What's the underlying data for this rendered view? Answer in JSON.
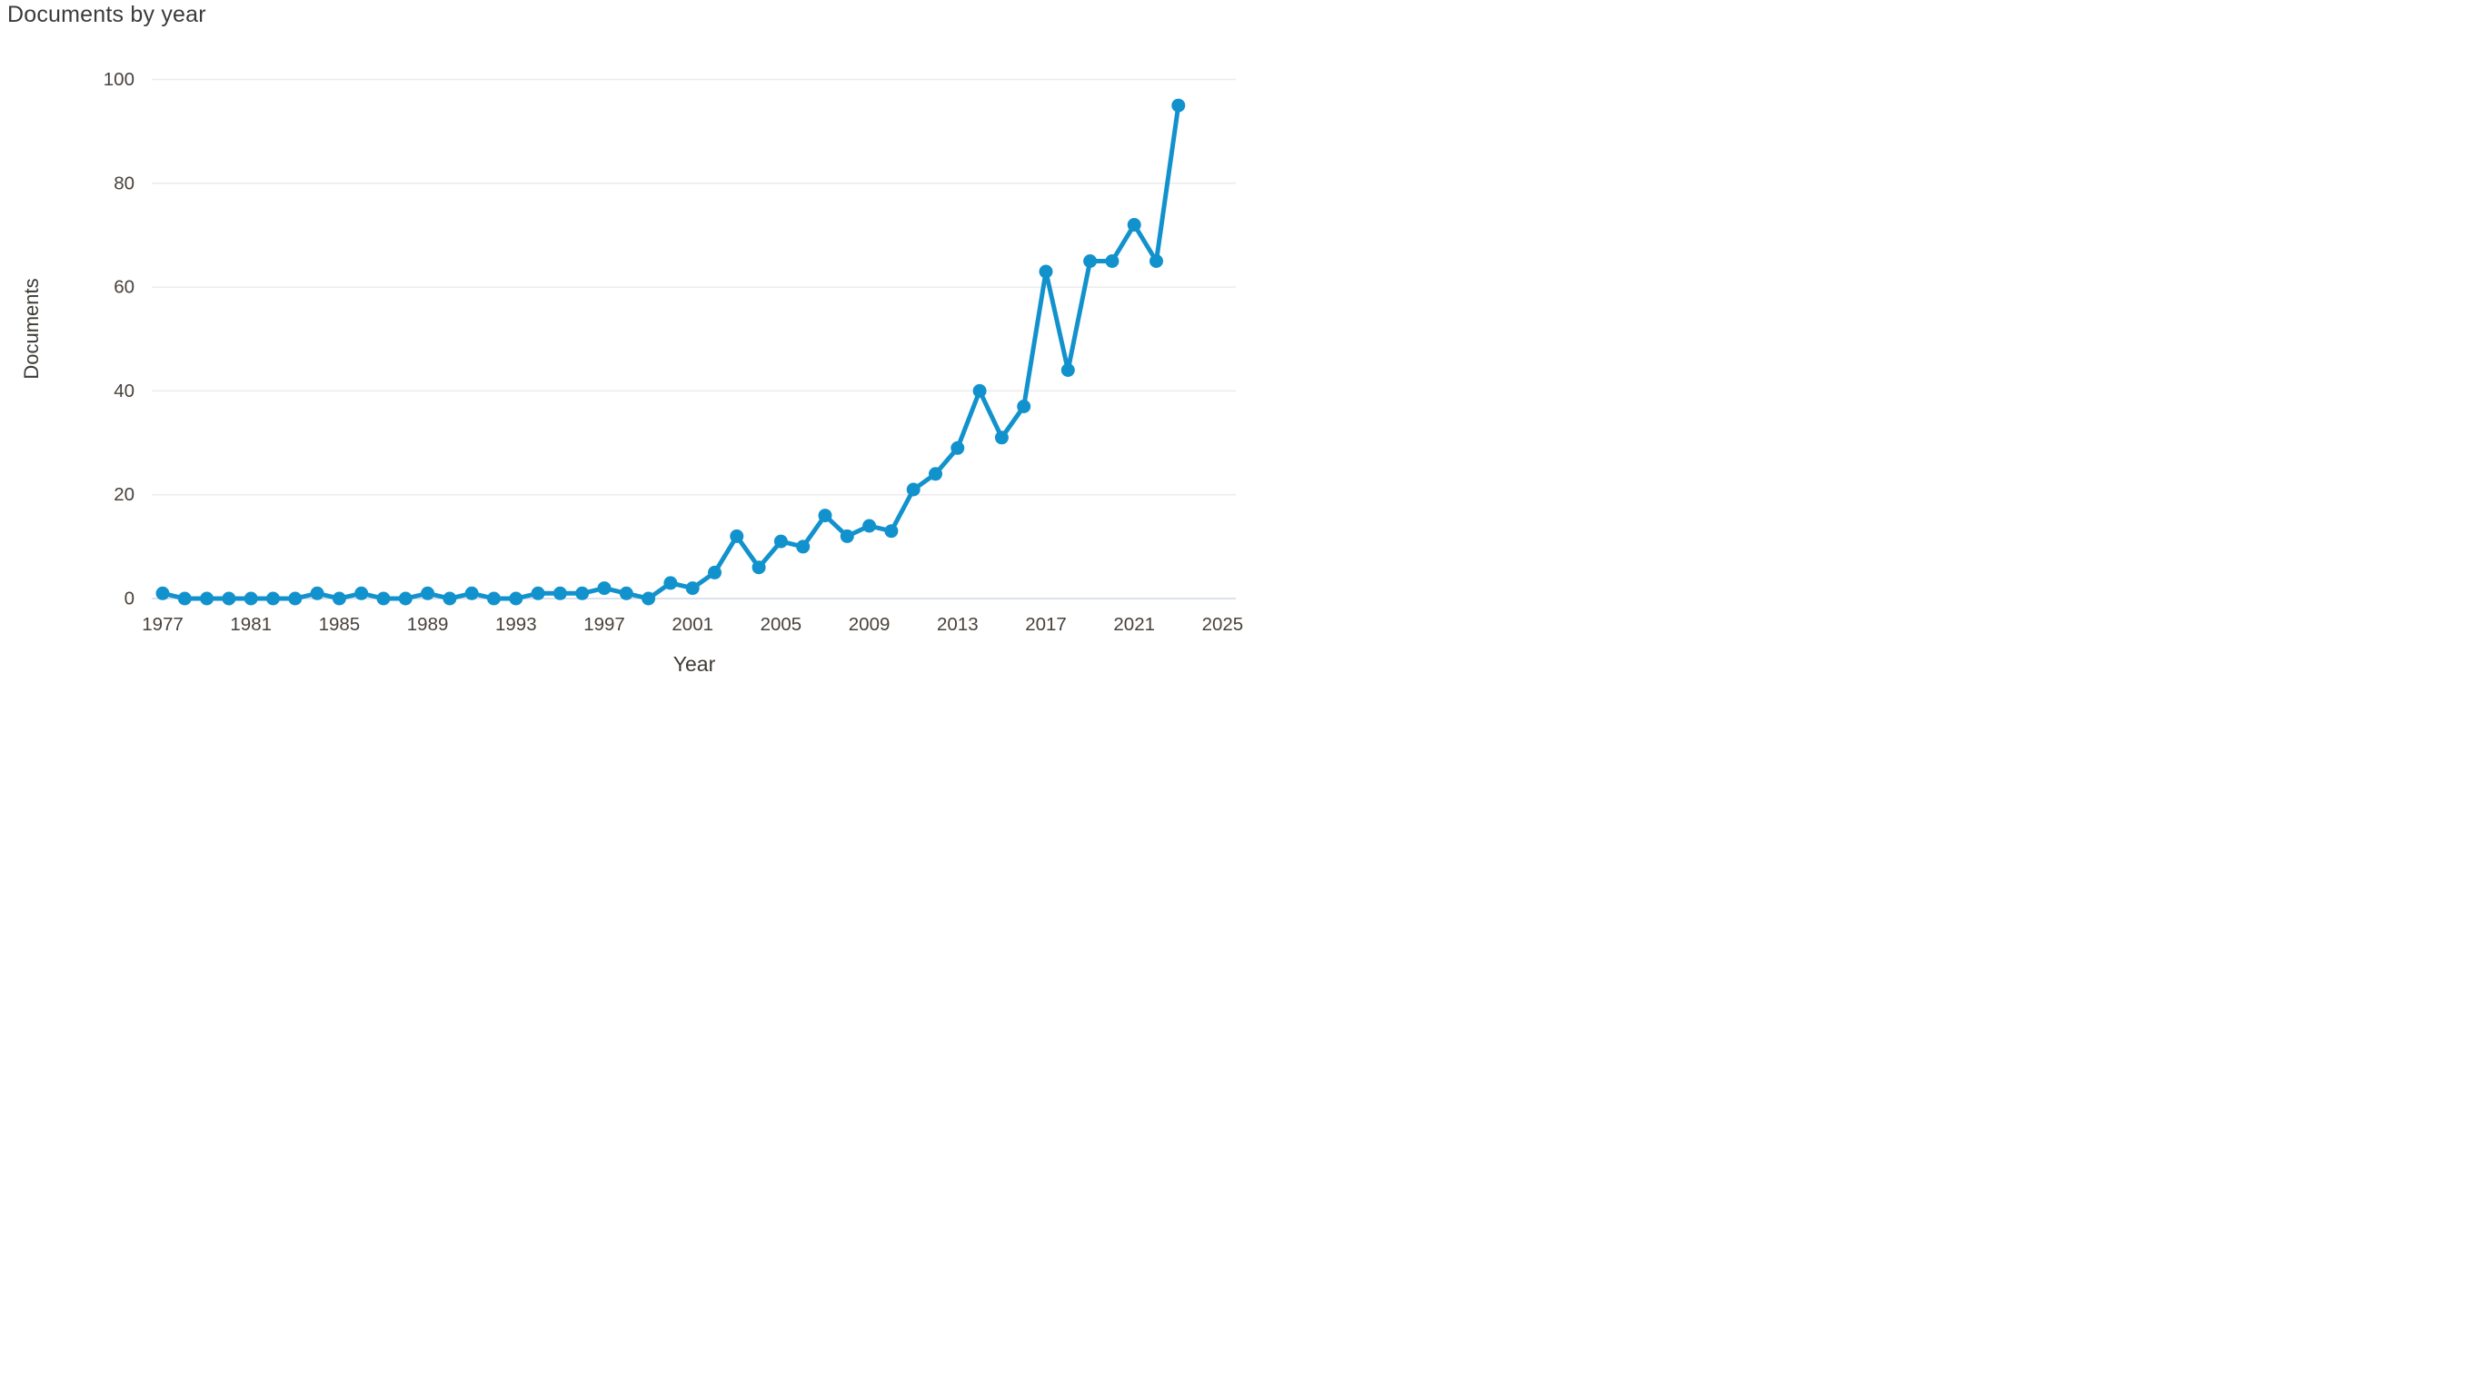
{
  "chart_data": {
    "type": "line",
    "title": "Documents by year",
    "xlabel": "Year",
    "ylabel": "Documents",
    "series_name": "Documents",
    "x": [
      1977,
      1978,
      1979,
      1980,
      1981,
      1982,
      1983,
      1984,
      1985,
      1986,
      1987,
      1988,
      1989,
      1990,
      1991,
      1992,
      1993,
      1994,
      1995,
      1996,
      1997,
      1998,
      1999,
      2000,
      2001,
      2002,
      2003,
      2004,
      2005,
      2006,
      2007,
      2008,
      2009,
      2010,
      2011,
      2012,
      2013,
      2014,
      2015,
      2016,
      2017,
      2018,
      2019,
      2020,
      2021,
      2022,
      2023
    ],
    "values": [
      1,
      0,
      0,
      0,
      0,
      0,
      0,
      1,
      0,
      1,
      0,
      0,
      1,
      0,
      1,
      0,
      0,
      1,
      1,
      1,
      2,
      1,
      0,
      3,
      2,
      5,
      12,
      6,
      11,
      10,
      16,
      12,
      14,
      13,
      21,
      24,
      29,
      40,
      31,
      37,
      63,
      44,
      65,
      65,
      72,
      65,
      95
    ],
    "ylim": [
      0,
      100
    ],
    "yticks": [
      0,
      20,
      40,
      60,
      80,
      100
    ],
    "xticks": [
      1977,
      1981,
      1985,
      1989,
      1993,
      1997,
      2001,
      2005,
      2009,
      2013,
      2017,
      2021,
      2025
    ],
    "grid": true,
    "legend": "none",
    "line_color": "#1292cd",
    "grid_color": "#ebebeb",
    "zero_line_color": "#dce1ee",
    "axis_text_color": "#48413a",
    "title_color": "#3b3b3b"
  }
}
